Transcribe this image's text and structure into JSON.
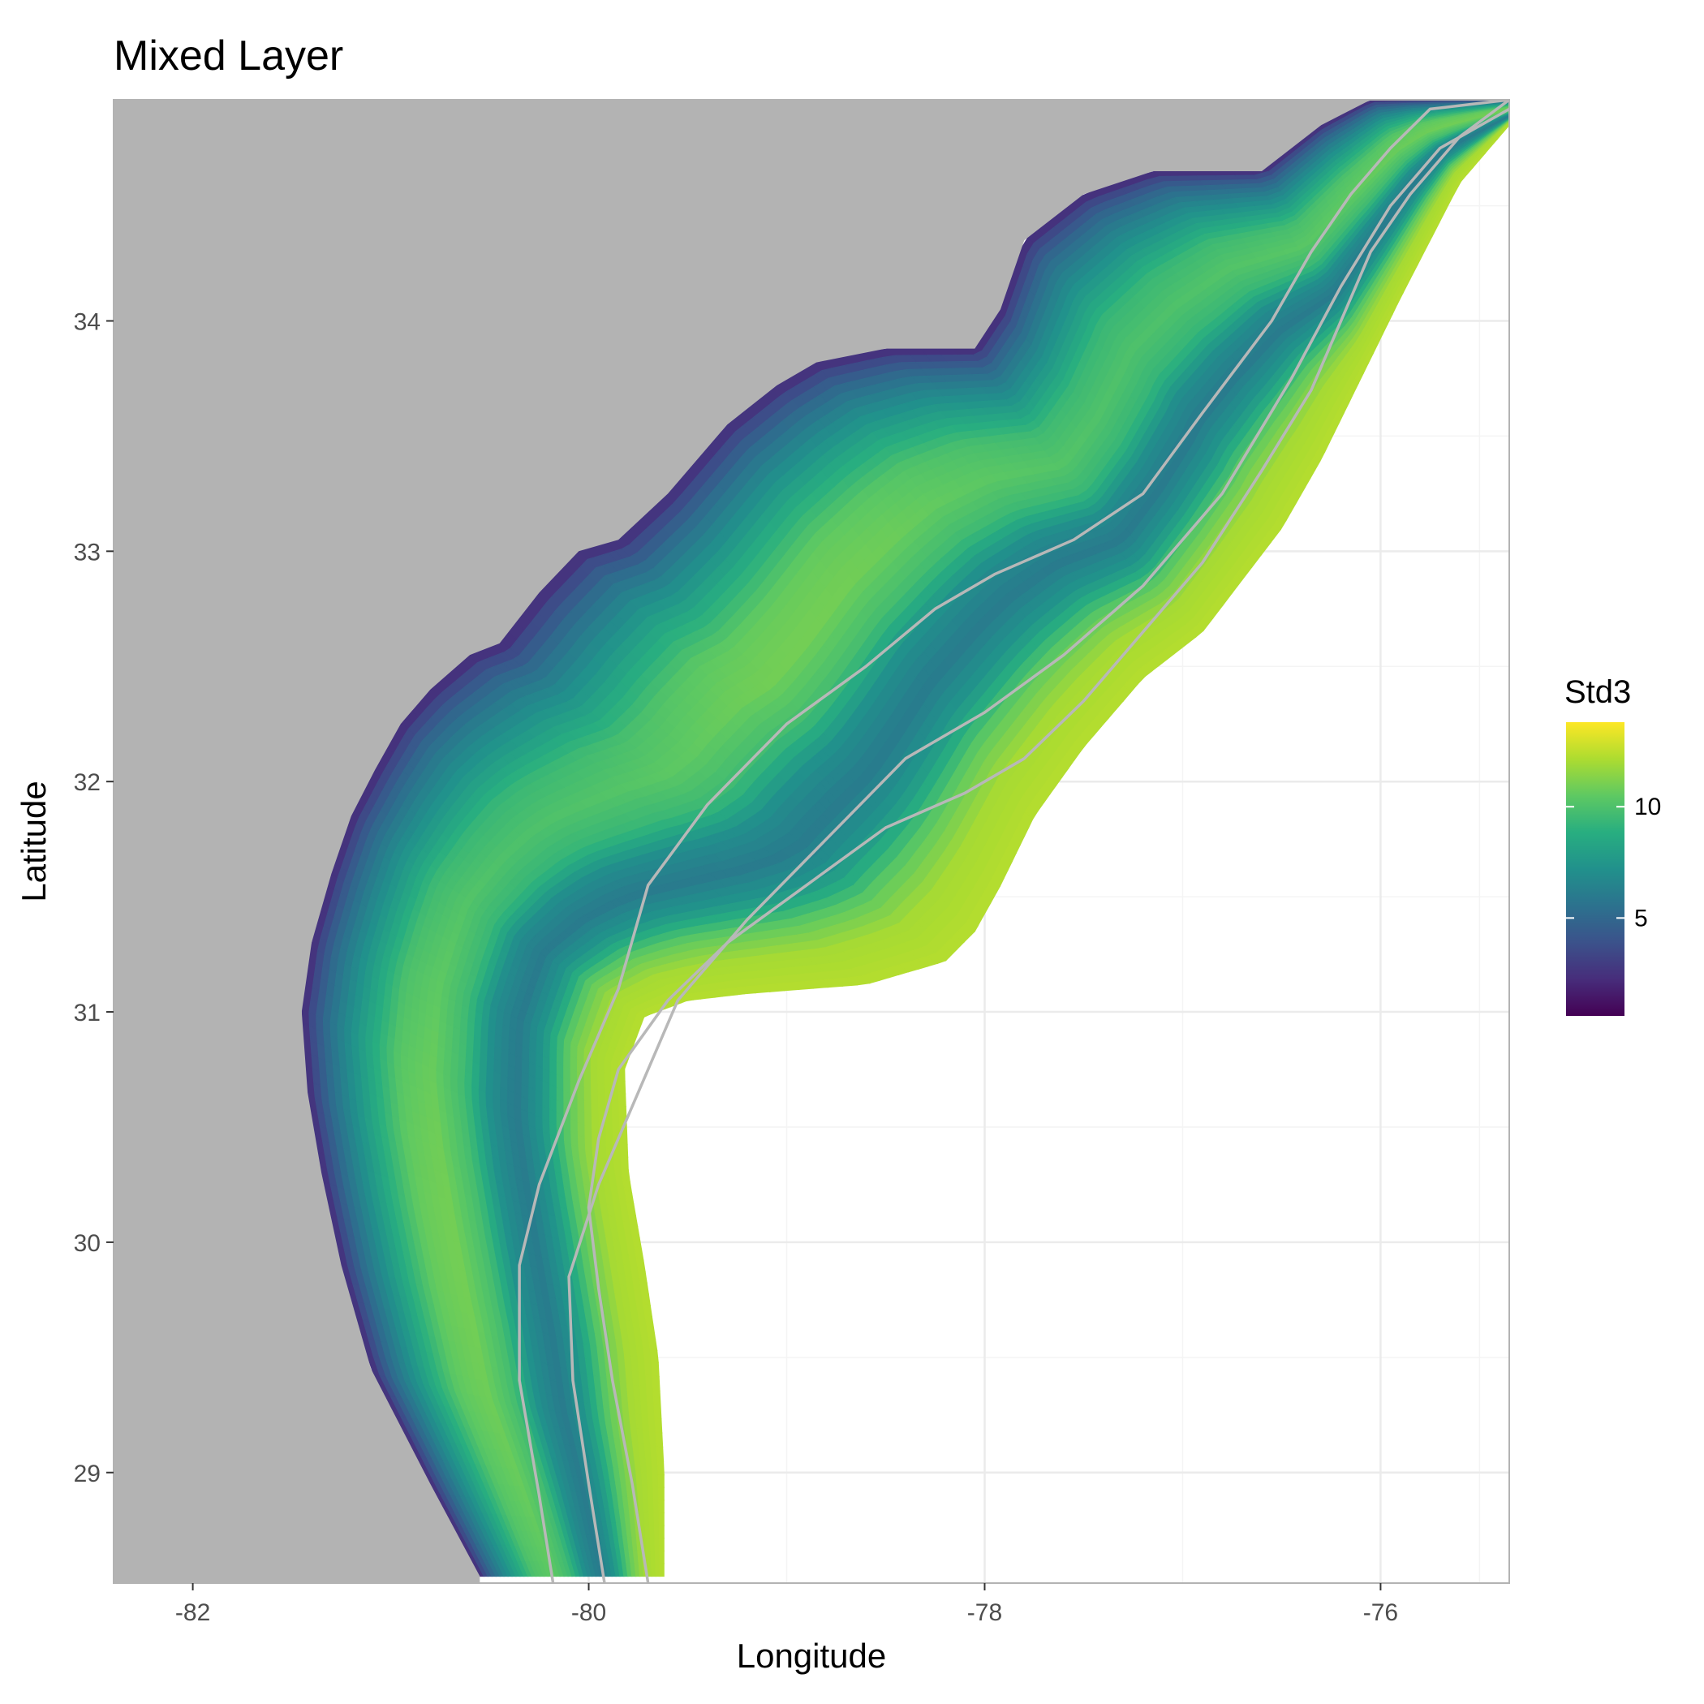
{
  "title": "Mixed Layer",
  "x_axis": {
    "label": "Longitude",
    "range": [
      -82.4,
      -75.35
    ],
    "ticks": [
      -82,
      -80,
      -78,
      -76
    ],
    "tick_labels": [
      "-82",
      "-80",
      "-78",
      "-76"
    ],
    "minor_ticks": [
      -81,
      -79,
      -77,
      -75.5
    ]
  },
  "y_axis": {
    "label": "Latitude",
    "range": [
      28.52,
      34.96
    ],
    "ticks": [
      29,
      30,
      31,
      32,
      33,
      34
    ],
    "tick_labels": [
      "29",
      "30",
      "31",
      "32",
      "33",
      "34"
    ],
    "minor_ticks": [
      28.5,
      29.5,
      30.5,
      31.5,
      32.5,
      33.5,
      34.5
    ]
  },
  "legend": {
    "title": "Std3",
    "placement": "right",
    "range": [
      0.6,
      13.8
    ],
    "ticks": [
      5,
      10
    ],
    "tick_labels": [
      "5",
      "10"
    ],
    "colors": [
      "#440154",
      "#472D7B",
      "#3B528B",
      "#2C728E",
      "#21918C",
      "#28AE80",
      "#5EC962",
      "#ADDC30",
      "#FDE725"
    ]
  },
  "colors": {
    "land": "#b3b3b3",
    "contour": "#b8b8b8",
    "grid": "#ebebeb",
    "panel_border": "#b3b3b3"
  },
  "chart_data": {
    "type": "heatmap",
    "title": "Mixed Layer",
    "xlabel": "Longitude",
    "ylabel": "Latitude",
    "xlim": [
      -82.4,
      -75.35
    ],
    "ylim": [
      28.52,
      34.96
    ],
    "grid": true,
    "legend": {
      "title": "Std3",
      "position": "right",
      "min": 0.6,
      "max": 13.8
    },
    "background": "land (gray) to the northwest, open ocean (white) to the southeast",
    "field_profile": {
      "note": "Std3 value as a function of cross-shelf fraction (0 = coast edge of data, 1 = offshore edge of data)",
      "t": [
        0.0,
        0.03,
        0.07,
        0.13,
        0.2,
        0.3,
        0.4,
        0.5,
        0.58,
        0.66,
        0.74,
        0.82,
        0.9,
        1.0
      ],
      "value": [
        2.0,
        3.5,
        5.0,
        6.5,
        8.0,
        10.0,
        10.5,
        9.5,
        7.0,
        6.0,
        7.5,
        10.5,
        12.0,
        12.3
      ]
    },
    "coast_line": {
      "lon": [
        -80.55,
        -80.8,
        -81.1,
        -81.25,
        -81.35,
        -81.42,
        -81.45,
        -81.4,
        -81.3,
        -81.2,
        -81.08,
        -80.95,
        -80.8,
        -80.6,
        -80.45,
        -80.25,
        -80.05,
        -79.85,
        -79.6,
        -79.3,
        -79.05,
        -78.85,
        -78.5,
        -78.05,
        -77.92,
        -77.8,
        -77.5,
        -77.15,
        -76.6,
        -76.3,
        -76.05,
        -75.75,
        -75.35
      ],
      "lat": [
        28.55,
        28.95,
        29.45,
        29.9,
        30.3,
        30.65,
        31.0,
        31.3,
        31.6,
        31.85,
        32.05,
        32.25,
        32.4,
        32.55,
        32.6,
        32.82,
        33.0,
        33.05,
        33.25,
        33.55,
        33.72,
        33.82,
        33.88,
        33.88,
        34.05,
        34.35,
        34.55,
        34.65,
        34.65,
        34.85,
        34.96,
        34.96,
        34.96
      ]
    },
    "outer_edge": {
      "lon": [
        -79.62,
        -79.62,
        -79.65,
        -79.72,
        -79.8,
        -79.82,
        -79.72,
        -79.5,
        -79.2,
        -78.6,
        -78.2,
        -78.05,
        -77.92,
        -77.75,
        -77.5,
        -77.2,
        -76.9,
        -76.5,
        -76.3,
        -76.1,
        -75.9,
        -75.6,
        -75.35
      ],
      "lat": [
        28.55,
        29.0,
        29.5,
        29.9,
        30.3,
        30.75,
        30.98,
        31.05,
        31.08,
        31.12,
        31.22,
        31.35,
        31.55,
        31.85,
        32.15,
        32.45,
        32.65,
        33.1,
        33.4,
        33.75,
        34.1,
        34.6,
        34.85
      ]
    },
    "isobath_contours": [
      {
        "lon": [
          -80.18,
          -80.25,
          -80.35,
          -80.35,
          -80.25,
          -80.05,
          -79.85,
          -79.7,
          -79.4,
          -79.0,
          -78.6,
          -78.25,
          -77.95,
          -77.55,
          -77.2,
          -76.9,
          -76.55,
          -76.35,
          -76.15,
          -75.95,
          -75.75,
          -75.35
        ],
        "lat": [
          28.52,
          28.9,
          29.4,
          29.9,
          30.25,
          30.7,
          31.1,
          31.55,
          31.9,
          32.25,
          32.5,
          32.75,
          32.9,
          33.05,
          33.25,
          33.6,
          34.0,
          34.3,
          34.55,
          34.75,
          34.92,
          34.96
        ]
      },
      {
        "lon": [
          -79.92,
          -80.0,
          -80.08,
          -80.1,
          -79.95,
          -79.75,
          -79.55,
          -79.2,
          -78.8,
          -78.4,
          -78.0,
          -77.6,
          -77.2,
          -76.8,
          -76.45,
          -76.2,
          -75.95,
          -75.7,
          -75.35
        ],
        "lat": [
          28.52,
          28.95,
          29.4,
          29.85,
          30.25,
          30.65,
          31.05,
          31.4,
          31.75,
          32.1,
          32.3,
          32.55,
          32.85,
          33.25,
          33.75,
          34.15,
          34.5,
          34.75,
          34.92
        ]
      },
      {
        "lon": [
          -79.7,
          -79.78,
          -79.88,
          -79.95,
          -80.0,
          -79.95,
          -79.85,
          -79.6,
          -79.3,
          -78.9,
          -78.5,
          -78.1,
          -77.8,
          -77.5,
          -77.2,
          -76.9,
          -76.6,
          -76.35,
          -76.2,
          -76.05,
          -75.85,
          -75.6,
          -75.35
        ],
        "lat": [
          28.52,
          28.95,
          29.4,
          29.8,
          30.15,
          30.45,
          30.75,
          31.05,
          31.3,
          31.55,
          31.8,
          31.95,
          32.1,
          32.35,
          32.65,
          32.95,
          33.35,
          33.7,
          34.0,
          34.3,
          34.55,
          34.8,
          34.96
        ]
      }
    ]
  }
}
